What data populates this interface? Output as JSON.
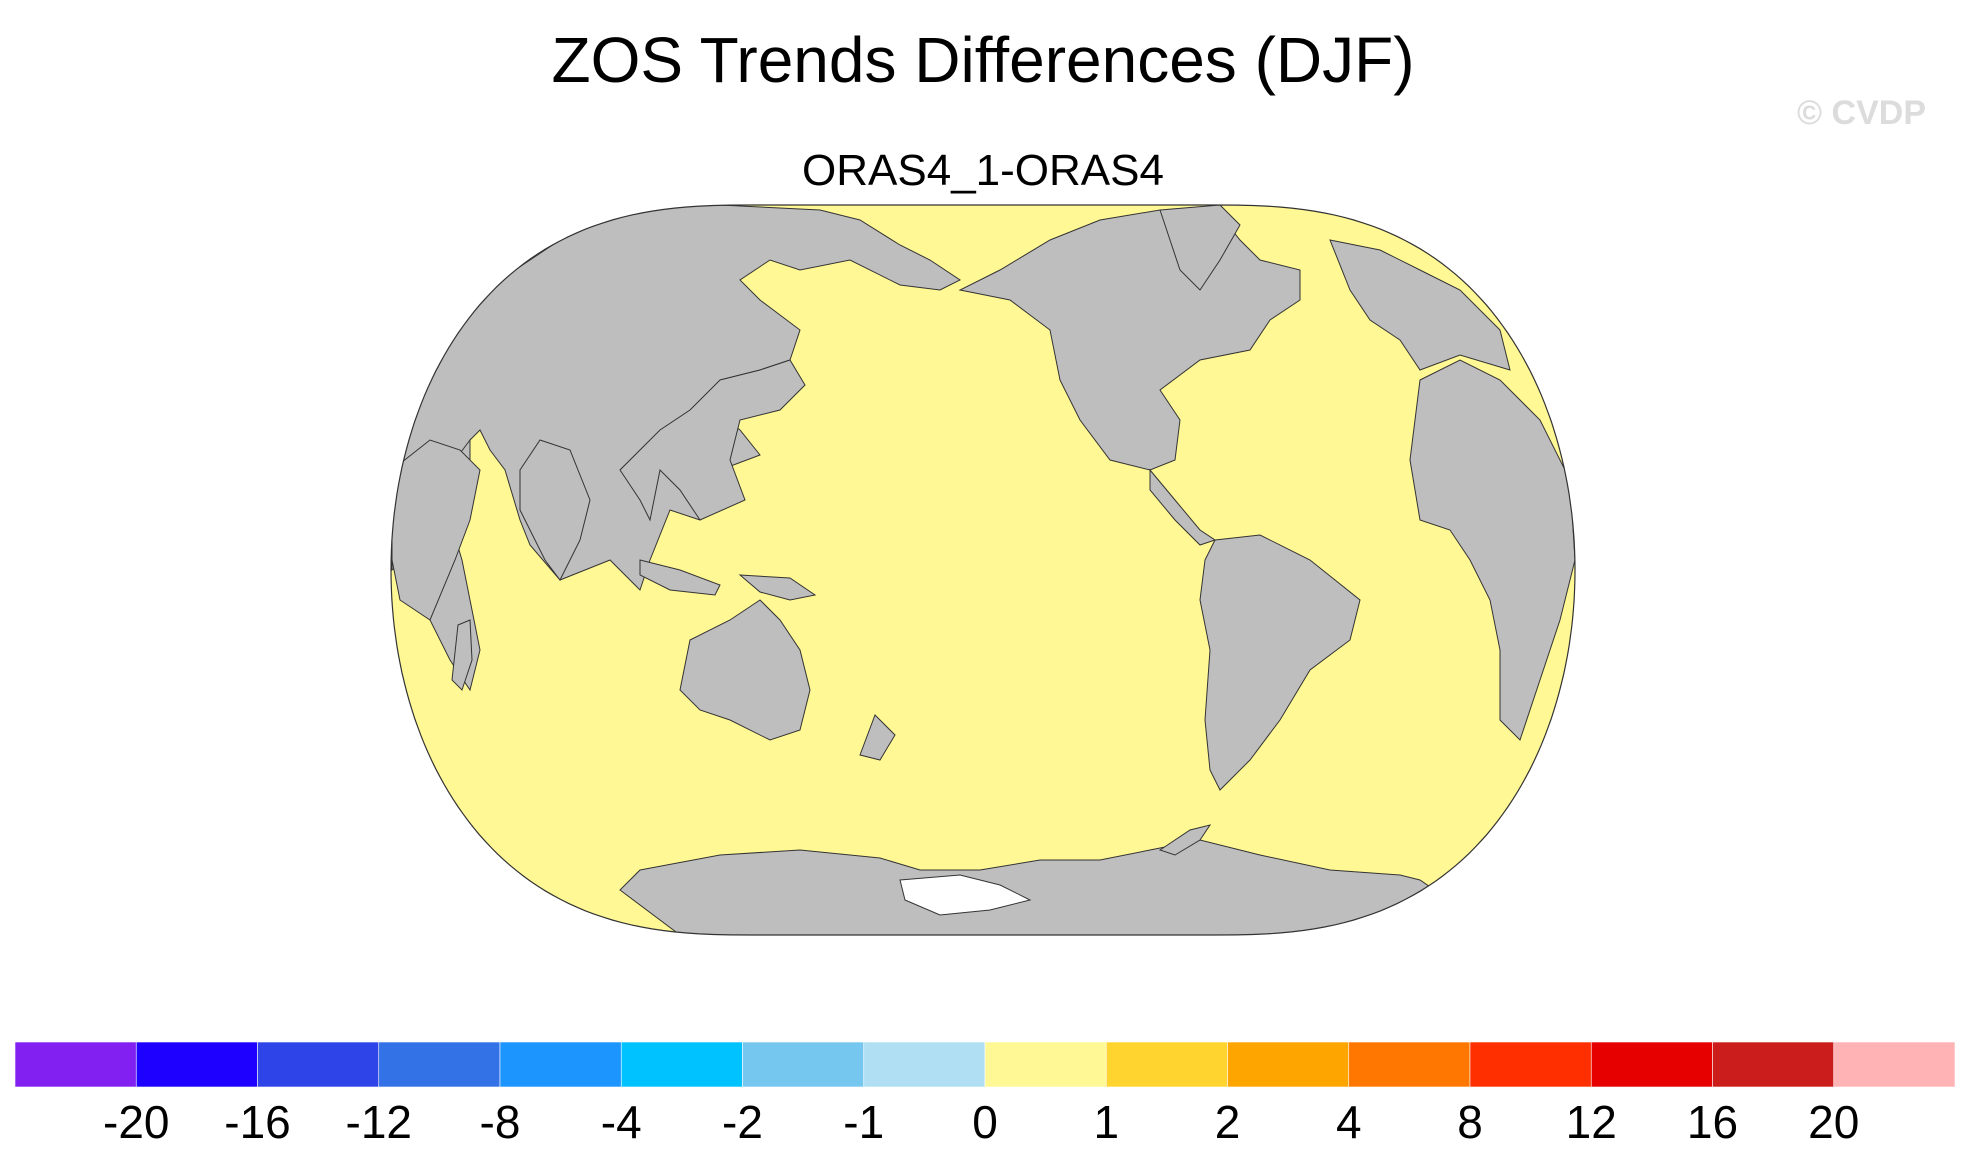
{
  "title": "ZOS Trends Differences (DJF)",
  "watermark": "© CVDP",
  "subtitle": "ORAS4_1-ORAS4",
  "map": {
    "projection": "Robinson",
    "center_longitude": 180,
    "ocean_color": "#FFF894",
    "land_color": "#BEBEBE",
    "missing_color": "#FFFFFF",
    "ocean_value_bin": "0 to 1"
  },
  "colorbar": {
    "colors": [
      "#8120F0",
      "#1D00FF",
      "#2E43E8",
      "#3372E6",
      "#1C95FF",
      "#00C2FF",
      "#75C7F0",
      "#B0DFF3",
      "#FFF894",
      "#FFD42E",
      "#FFA500",
      "#FF7700",
      "#FF2F00",
      "#E60000",
      "#CC1D1D",
      "#FFB3B5"
    ],
    "labels": [
      "-20",
      "-16",
      "-12",
      "-8",
      "-4",
      "-2",
      "-1",
      "0",
      "1",
      "2",
      "4",
      "8",
      "12",
      "16",
      "20"
    ]
  }
}
